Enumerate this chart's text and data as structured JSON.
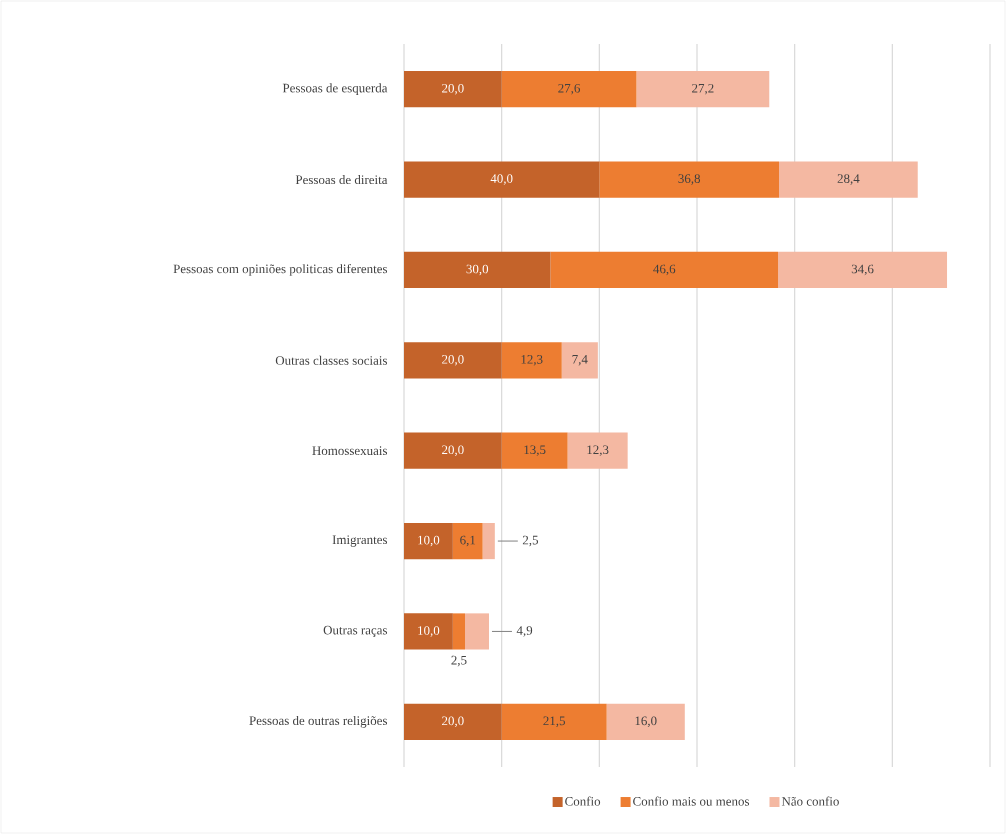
{
  "chart_data": {
    "type": "bar",
    "orientation": "horizontal",
    "stacked": true,
    "categories": [
      "Pessoas de esquerda",
      "Pessoas de direita",
      "Pessoas com opiniões politicas diferentes",
      "Outras classes sociais",
      "Homossexuais",
      "Imigrantes",
      "Outras raças",
      "Pessoas de outras religiões"
    ],
    "series": [
      {
        "name": "Confio",
        "color": "#c4632a",
        "values": [
          20.0,
          40.0,
          30.0,
          20.0,
          20.0,
          10.0,
          10.0,
          20.0
        ],
        "value_labels": [
          "20,0",
          "40,0",
          "30,0",
          "20,0",
          "20,0",
          "10,0",
          "10,0",
          "20,0"
        ]
      },
      {
        "name": "Confio mais ou menos",
        "color": "#ed7d31",
        "values": [
          27.6,
          36.8,
          46.6,
          12.3,
          13.5,
          6.1,
          2.5,
          21.5
        ],
        "value_labels": [
          "27,6",
          "36,8",
          "46,6",
          "12,3",
          "13,5",
          "6,1",
          "2,5",
          "21,5"
        ]
      },
      {
        "name": "Não confio",
        "color": "#f4b8a2",
        "values": [
          27.2,
          28.4,
          34.6,
          7.4,
          12.3,
          2.5,
          4.9,
          16.0
        ],
        "value_labels": [
          "27,2",
          "28,4",
          "34,6",
          "7,4",
          "12,3",
          "2,5",
          "4,9",
          "16,0"
        ]
      }
    ],
    "xlim": [
      0,
      120
    ],
    "xticks": [
      0,
      20,
      40,
      60,
      80,
      100,
      120
    ],
    "tick_labels": "y",
    "grid": "x",
    "legend": "bottom"
  }
}
